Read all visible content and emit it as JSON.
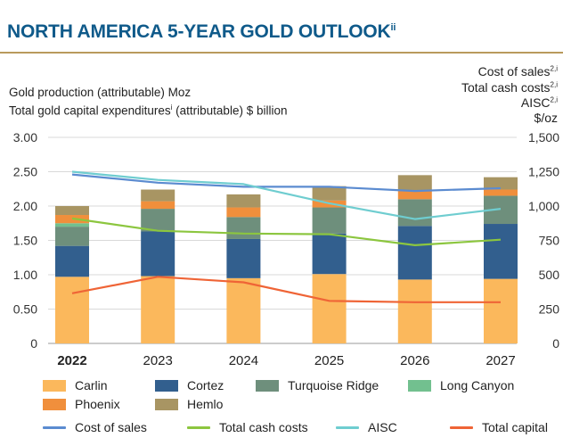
{
  "header": {
    "title": "NORTH AMERICA 5-YEAR GOLD OUTLOOK",
    "title_sup": "ii"
  },
  "left_axis_label": {
    "line1": "Gold production (attributable) Moz",
    "line2_a": "Total gold capital expenditures",
    "line2_sup": "i",
    "line2_b": " (attributable) $ billion"
  },
  "right_axis_label": {
    "line1": "Cost of sales",
    "line1_sup": "2,i",
    "line2": "Total cash costs",
    "line2_sup": "2,i",
    "line3": "AISC",
    "line3_sup": "2,i",
    "line4": "$/oz"
  },
  "chart_data": {
    "type": "bar",
    "stacked": true,
    "categories": [
      "2022",
      "2023",
      "2024",
      "2025",
      "2026",
      "2027"
    ],
    "bold_category": "2022",
    "y_left": {
      "range": [
        0,
        3.0
      ],
      "ticks": [
        "0",
        "0.50",
        "1.00",
        "1.50",
        "2.00",
        "2.50",
        "3.00"
      ]
    },
    "y_right": {
      "range": [
        0,
        1500
      ],
      "ticks": [
        "0",
        "250",
        "500",
        "750",
        "1,000",
        "1,250",
        "1,500"
      ]
    },
    "bar_series": [
      {
        "name": "Carlin",
        "color": "#fbb85c",
        "values": [
          0.97,
          0.98,
          0.95,
          1.01,
          0.93,
          0.94
        ]
      },
      {
        "name": "Cortez",
        "color": "#325f8e",
        "values": [
          0.45,
          0.65,
          0.57,
          0.59,
          0.78,
          0.8
        ]
      },
      {
        "name": "Turquoise Ridge",
        "color": "#6e8f7c",
        "values": [
          0.28,
          0.33,
          0.32,
          0.38,
          0.39,
          0.41
        ]
      },
      {
        "name": "Long Canyon",
        "color": "#72c08f",
        "values": [
          0.05,
          0.0,
          0.0,
          0.0,
          0.0,
          0.0
        ]
      },
      {
        "name": "Phoenix",
        "color": "#f08f3c",
        "values": [
          0.12,
          0.11,
          0.14,
          0.1,
          0.12,
          0.09
        ]
      },
      {
        "name": "Hemlo",
        "color": "#a89563",
        "values": [
          0.13,
          0.17,
          0.19,
          0.21,
          0.23,
          0.18
        ]
      }
    ],
    "line_series": [
      {
        "name": "Cost of sales",
        "axis": "right",
        "color": "#5b8bd0",
        "values": [
          1230,
          1170,
          1140,
          1140,
          1110,
          1130
        ]
      },
      {
        "name": "Total cash costs",
        "axis": "right",
        "color": "#8cc63f",
        "values": [
          910,
          820,
          800,
          795,
          715,
          755
        ]
      },
      {
        "name": "AISC",
        "axis": "right",
        "color": "#6fcdd0",
        "values": [
          1250,
          1190,
          1160,
          1020,
          905,
          980
        ]
      },
      {
        "name": "Total capital",
        "axis": "left",
        "color": "#ef6436",
        "values": [
          0.73,
          0.97,
          0.89,
          0.62,
          0.6,
          0.6
        ]
      }
    ],
    "legend_position": "bottom"
  }
}
